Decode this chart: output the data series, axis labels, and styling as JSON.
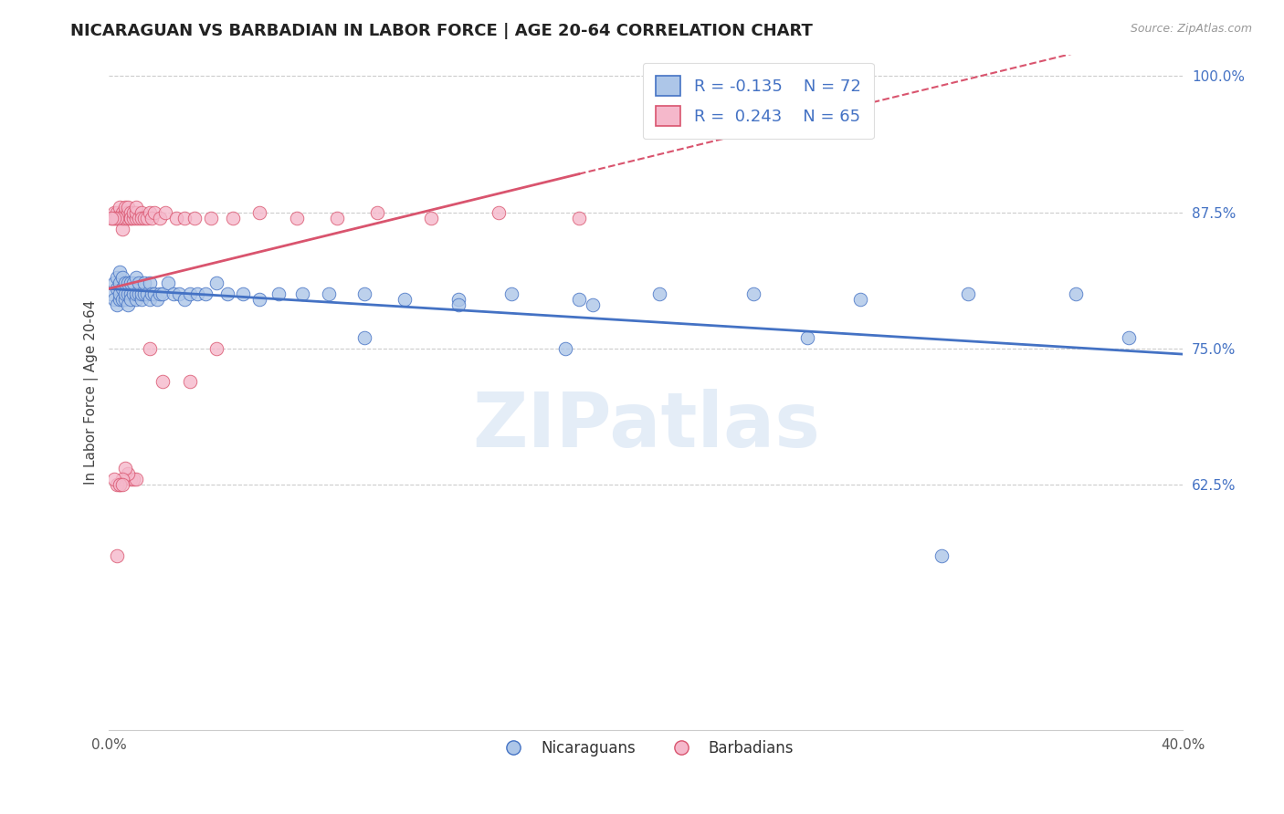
{
  "title": "NICARAGUAN VS BARBADIAN IN LABOR FORCE | AGE 20-64 CORRELATION CHART",
  "source_text": "Source: ZipAtlas.com",
  "ylabel": "In Labor Force | Age 20-64",
  "xlim": [
    0.0,
    0.4
  ],
  "ylim": [
    0.4,
    1.02
  ],
  "yticks": [
    0.625,
    0.75,
    0.875,
    1.0
  ],
  "yticklabels": [
    "62.5%",
    "75.0%",
    "87.5%",
    "100.0%"
  ],
  "blue_R": -0.135,
  "blue_N": 72,
  "pink_R": 0.243,
  "pink_N": 65,
  "blue_color": "#adc6e8",
  "pink_color": "#f5b8cb",
  "blue_line_color": "#4472c4",
  "pink_line_color": "#d9546e",
  "blue_scatter_x": [
    0.001,
    0.002,
    0.002,
    0.003,
    0.003,
    0.003,
    0.004,
    0.004,
    0.004,
    0.004,
    0.005,
    0.005,
    0.005,
    0.006,
    0.006,
    0.006,
    0.007,
    0.007,
    0.007,
    0.008,
    0.008,
    0.008,
    0.009,
    0.009,
    0.01,
    0.01,
    0.01,
    0.011,
    0.011,
    0.012,
    0.012,
    0.013,
    0.013,
    0.014,
    0.015,
    0.015,
    0.016,
    0.017,
    0.018,
    0.019,
    0.02,
    0.022,
    0.024,
    0.026,
    0.028,
    0.03,
    0.033,
    0.036,
    0.04,
    0.044,
    0.05,
    0.056,
    0.063,
    0.072,
    0.082,
    0.095,
    0.11,
    0.13,
    0.15,
    0.175,
    0.205,
    0.24,
    0.28,
    0.32,
    0.36,
    0.17,
    0.095,
    0.13,
    0.18,
    0.26,
    0.31,
    0.38
  ],
  "blue_scatter_y": [
    0.8,
    0.795,
    0.81,
    0.79,
    0.805,
    0.815,
    0.795,
    0.8,
    0.81,
    0.82,
    0.795,
    0.805,
    0.815,
    0.795,
    0.8,
    0.81,
    0.8,
    0.79,
    0.81,
    0.8,
    0.81,
    0.795,
    0.8,
    0.81,
    0.795,
    0.8,
    0.815,
    0.8,
    0.81,
    0.795,
    0.8,
    0.8,
    0.81,
    0.8,
    0.795,
    0.81,
    0.8,
    0.8,
    0.795,
    0.8,
    0.8,
    0.81,
    0.8,
    0.8,
    0.795,
    0.8,
    0.8,
    0.8,
    0.81,
    0.8,
    0.8,
    0.795,
    0.8,
    0.8,
    0.8,
    0.8,
    0.795,
    0.795,
    0.8,
    0.795,
    0.8,
    0.8,
    0.795,
    0.8,
    0.8,
    0.75,
    0.76,
    0.79,
    0.79,
    0.76,
    0.56,
    0.76
  ],
  "pink_scatter_x": [
    0.001,
    0.002,
    0.002,
    0.003,
    0.003,
    0.004,
    0.004,
    0.005,
    0.005,
    0.005,
    0.006,
    0.006,
    0.006,
    0.007,
    0.007,
    0.007,
    0.008,
    0.008,
    0.008,
    0.009,
    0.009,
    0.01,
    0.01,
    0.01,
    0.011,
    0.012,
    0.012,
    0.013,
    0.014,
    0.015,
    0.016,
    0.017,
    0.019,
    0.021,
    0.025,
    0.028,
    0.032,
    0.038,
    0.046,
    0.056,
    0.07,
    0.085,
    0.1,
    0.12,
    0.145,
    0.175,
    0.015,
    0.02,
    0.03,
    0.04,
    0.008,
    0.009,
    0.01,
    0.007,
    0.006,
    0.005,
    0.004,
    0.003,
    0.002,
    0.003,
    0.004,
    0.005,
    0.003,
    0.002,
    0.001
  ],
  "pink_scatter_y": [
    0.87,
    0.87,
    0.875,
    0.87,
    0.875,
    0.87,
    0.88,
    0.86,
    0.87,
    0.875,
    0.87,
    0.875,
    0.88,
    0.87,
    0.875,
    0.88,
    0.87,
    0.875,
    0.87,
    0.87,
    0.875,
    0.87,
    0.875,
    0.88,
    0.87,
    0.875,
    0.87,
    0.87,
    0.87,
    0.875,
    0.87,
    0.875,
    0.87,
    0.875,
    0.87,
    0.87,
    0.87,
    0.87,
    0.87,
    0.875,
    0.87,
    0.87,
    0.875,
    0.87,
    0.875,
    0.87,
    0.75,
    0.72,
    0.72,
    0.75,
    0.63,
    0.63,
    0.63,
    0.635,
    0.64,
    0.63,
    0.625,
    0.625,
    0.63,
    0.56,
    0.625,
    0.625,
    0.87,
    0.87,
    0.87
  ],
  "watermark_text": "ZIPatlas",
  "background_color": "#ffffff",
  "grid_color": "#cccccc",
  "title_fontsize": 13,
  "axis_label_fontsize": 11,
  "tick_fontsize": 11,
  "legend_fontsize": 13
}
